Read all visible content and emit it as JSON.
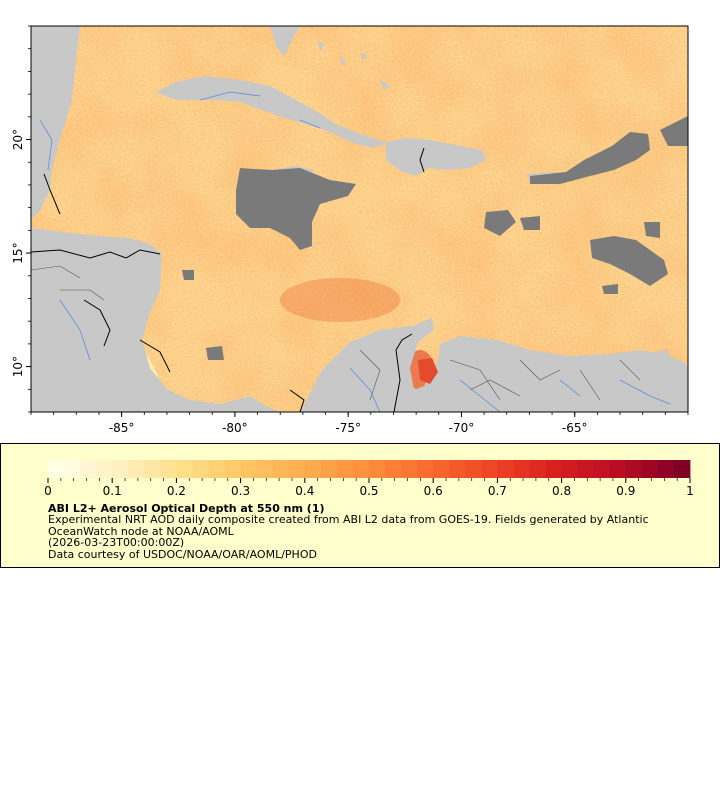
{
  "map": {
    "x_ticks": [
      {
        "lon": -85,
        "label": "-85°"
      },
      {
        "lon": -80,
        "label": "-80°"
      },
      {
        "lon": -75,
        "label": "-75°"
      },
      {
        "lon": -70,
        "label": "-70°"
      },
      {
        "lon": -65,
        "label": "-65°"
      }
    ],
    "y_ticks": [
      {
        "lat": 20,
        "label": "20°"
      },
      {
        "lat": 15,
        "label": "15°"
      },
      {
        "lat": 10,
        "label": "10°"
      }
    ],
    "lon_range": [
      -89,
      -60
    ],
    "lat_range": [
      8,
      25
    ],
    "colors": {
      "land": "#c8c8c8",
      "missing": "#7a7a7a",
      "border": "#000000",
      "river": "#5b8fd9",
      "admin": "#555555"
    }
  },
  "colorbar": {
    "min": 0,
    "max": 1,
    "ticks": [
      "0",
      "0.1",
      "0.2",
      "0.3",
      "0.4",
      "0.5",
      "0.6",
      "0.7",
      "0.8",
      "0.9",
      "1"
    ],
    "stops": [
      "#ffffe6",
      "#fff0c0",
      "#fee08a",
      "#fec665",
      "#fdac4f",
      "#fd8d3c",
      "#f86a2c",
      "#ee4424",
      "#d91e1f",
      "#b90d25",
      "#800026"
    ]
  },
  "legend": {
    "title": "ABI L2+ Aerosol Optical Depth at 550 nm (1)",
    "line1": "Experimental NRT AOD daily composite created from ABI L2 data from GOES-19. Fields generated by Atlantic",
    "line2": "OceanWatch node at NOAA/AOML",
    "line3": "(2026-03-23T00:00:00Z)",
    "line4": "Data courtesy of USDOC/NOAA/OAR/AOML/PHOD"
  }
}
